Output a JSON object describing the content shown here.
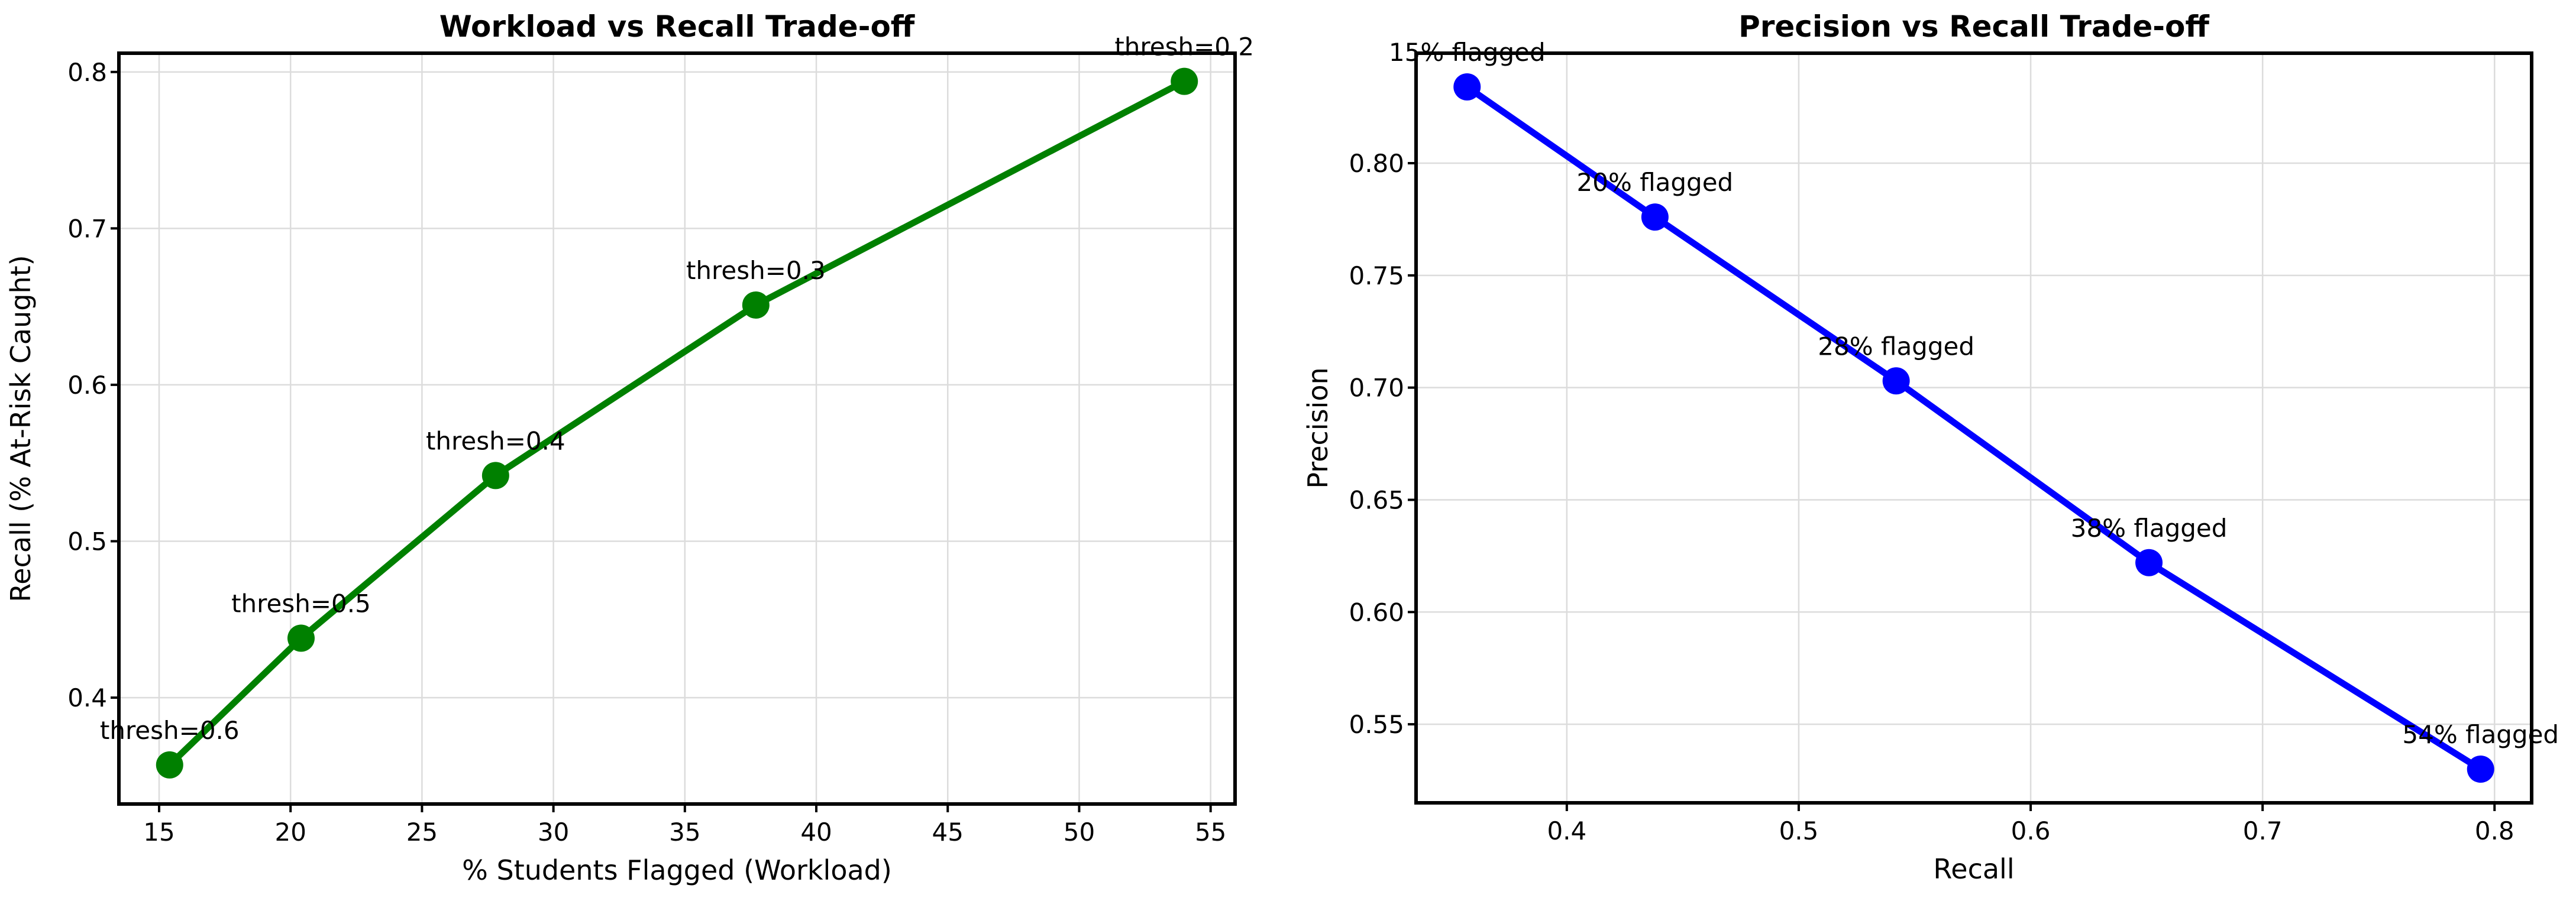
{
  "figure": {
    "background": "#ffffff"
  },
  "chart_data": [
    {
      "type": "line",
      "title": "Workload vs Recall Trade-off",
      "xlabel": "% Students Flagged (Workload)",
      "ylabel": "Recall (% At-Risk Caught)",
      "line_color": "#008000",
      "marker_color": "#008000",
      "grid": true,
      "legend_position": "none",
      "x": [
        15.4,
        20.4,
        27.8,
        37.7,
        54.0
      ],
      "y": [
        0.357,
        0.438,
        0.542,
        0.651,
        0.794
      ],
      "point_labels": [
        "thresh=0.6",
        "thresh=0.5",
        "thresh=0.4",
        "thresh=0.3",
        "thresh=0.2"
      ],
      "xlim": [
        13.47,
        55.93
      ],
      "ylim": [
        0.332,
        0.812
      ],
      "xticks": [
        15,
        20,
        25,
        30,
        35,
        40,
        45,
        50,
        55
      ],
      "xtick_labels": [
        "15",
        "20",
        "25",
        "30",
        "35",
        "40",
        "45",
        "50",
        "55"
      ],
      "yticks": [
        0.4,
        0.5,
        0.6,
        0.7,
        0.8
      ],
      "ytick_labels": [
        "0.4",
        "0.5",
        "0.6",
        "0.7",
        "0.8"
      ]
    },
    {
      "type": "line",
      "title": "Precision vs Recall Trade-off",
      "xlabel": "Recall",
      "ylabel": "Precision",
      "line_color": "#0000ff",
      "marker_color": "#0000ff",
      "grid": true,
      "legend_position": "none",
      "x": [
        0.357,
        0.438,
        0.542,
        0.651,
        0.794
      ],
      "y": [
        0.834,
        0.776,
        0.703,
        0.622,
        0.53
      ],
      "point_labels": [
        "15% flagged",
        "20% flagged",
        "28% flagged",
        "38% flagged",
        "54% flagged"
      ],
      "xlim": [
        0.335,
        0.816
      ],
      "ylim": [
        0.515,
        0.849
      ],
      "xticks": [
        0.4,
        0.5,
        0.6,
        0.7,
        0.8
      ],
      "xtick_labels": [
        "0.4",
        "0.5",
        "0.6",
        "0.7",
        "0.8"
      ],
      "yticks": [
        0.55,
        0.6,
        0.65,
        0.7,
        0.75,
        0.8
      ],
      "ytick_labels": [
        "0.55",
        "0.60",
        "0.65",
        "0.70",
        "0.75",
        "0.80"
      ]
    }
  ]
}
